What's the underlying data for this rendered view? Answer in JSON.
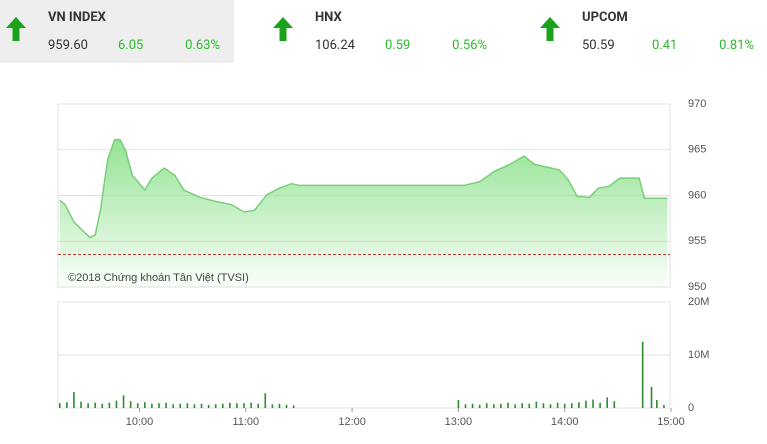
{
  "indices": [
    {
      "name": "VN INDEX",
      "value": "959.60",
      "change": "6.05",
      "percent": "0.63%"
    },
    {
      "name": "HNX",
      "value": "106.24",
      "change": "0.59",
      "percent": "0.56%"
    },
    {
      "name": "UPCOM",
      "value": "50.59",
      "change": "0.41",
      "percent": "0.81%"
    }
  ],
  "chart_data": [
    {
      "type": "area",
      "annotation": "©2018 Chứng khoán Tân Việt (TVSI)",
      "xlim": [
        554,
        900
      ],
      "ylim": [
        950,
        970
      ],
      "yticks": [
        950,
        955,
        960,
        965,
        970
      ],
      "grid": true,
      "reference": 953.55,
      "reference_color": "#c0392b",
      "series": [
        {
          "color": "#79cf79",
          "fill": "#8fe28f",
          "x": [
            555,
            558,
            563,
            572,
            575,
            578,
            582,
            586,
            589,
            592,
            596,
            603,
            607,
            614,
            620,
            625,
            634,
            642,
            652,
            659,
            665,
            672,
            679,
            686,
            690,
            783,
            792,
            800,
            809,
            817,
            823,
            830,
            837,
            842,
            847,
            854,
            859,
            865,
            871,
            882,
            885,
            898
          ],
          "values": [
            959.5,
            959.0,
            957.1,
            955.4,
            955.7,
            958.4,
            963.9,
            966.1,
            966.1,
            965.0,
            962.2,
            960.6,
            961.9,
            963.0,
            962.2,
            960.6,
            959.8,
            959.4,
            959.0,
            958.2,
            958.4,
            960.1,
            960.8,
            961.3,
            961.1,
            961.1,
            961.5,
            962.6,
            963.4,
            964.3,
            963.4,
            963.1,
            962.8,
            961.7,
            959.9,
            959.8,
            960.8,
            961.0,
            961.9,
            961.9,
            959.7,
            959.7
          ]
        }
      ]
    },
    {
      "type": "bar",
      "xlim": [
        554,
        900
      ],
      "xticks": [
        {
          "value": 600,
          "label": "10:00"
        },
        {
          "value": 660,
          "label": "11:00"
        },
        {
          "value": 720,
          "label": "12:00"
        },
        {
          "value": 780,
          "label": "13:00"
        },
        {
          "value": 840,
          "label": "14:00"
        },
        {
          "value": 900,
          "label": "15:00"
        }
      ],
      "ylim": [
        0,
        20000000
      ],
      "yticks": [
        0,
        {
          "value": 10000000,
          "label": "10M"
        },
        {
          "value": 20000000,
          "label": "20M"
        }
      ],
      "grid": true,
      "series": [
        {
          "color": "#2e8b2e",
          "x": [
            555,
            559,
            563,
            567,
            571,
            575,
            579,
            583,
            587,
            591,
            595,
            599,
            603,
            607,
            611,
            615,
            619,
            623,
            627,
            631,
            635,
            639,
            643,
            647,
            651,
            655,
            659,
            663,
            667,
            671,
            675,
            679,
            683,
            687,
            780,
            784,
            788,
            792,
            796,
            800,
            804,
            808,
            812,
            816,
            820,
            824,
            828,
            832,
            836,
            840,
            844,
            848,
            852,
            856,
            860,
            864,
            868,
            884,
            889,
            892,
            896
          ],
          "values": [
            900000,
            1100000,
            3000000,
            1200000,
            900000,
            1000000,
            800000,
            1000000,
            1400000,
            2400000,
            1300000,
            900000,
            1100000,
            800000,
            900000,
            1000000,
            700000,
            800000,
            900000,
            700000,
            800000,
            600000,
            700000,
            800000,
            1000000,
            900000,
            900000,
            1000000,
            800000,
            2800000,
            700000,
            800000,
            600000,
            500000,
            1500000,
            700000,
            800000,
            600000,
            900000,
            700000,
            800000,
            1000000,
            700000,
            900000,
            800000,
            1200000,
            900000,
            700000,
            1000000,
            800000,
            900000,
            1100000,
            1400000,
            1600000,
            1000000,
            2000000,
            1300000,
            12500000,
            4000000,
            1500000,
            600000
          ]
        }
      ]
    }
  ]
}
